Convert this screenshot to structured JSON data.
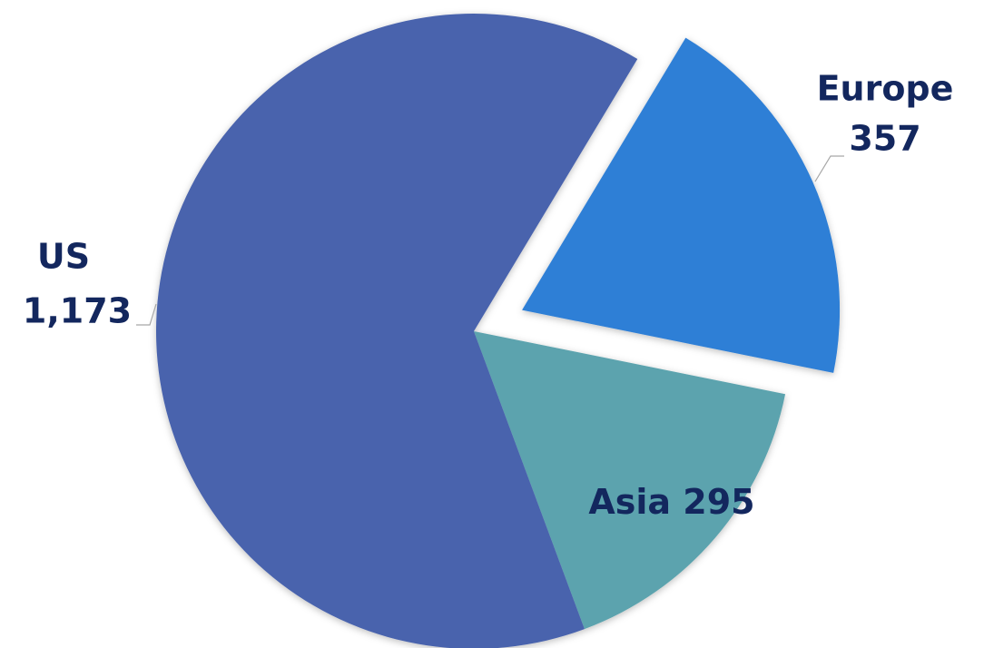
{
  "chart_data": {
    "type": "pie",
    "categories": [
      "Europe",
      "Asia",
      "US"
    ],
    "values": [
      357,
      295,
      1173
    ],
    "value_labels": [
      "357",
      "295",
      "1,173"
    ],
    "colors": [
      "#2e7fd6",
      "#5ba3ae",
      "#4a64ad"
    ]
  }
}
